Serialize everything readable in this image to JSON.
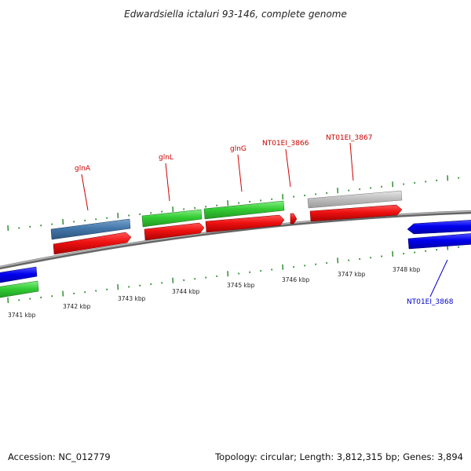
{
  "title": "Edwardsiella ictaluri 93-146, complete genome",
  "footer": {
    "accession": "Accession: NC_012779",
    "summary": "Topology: circular; Length: 3,812,315 bp; Genes: 3,894"
  },
  "ruler_labels": [
    "3741 kbp",
    "3742 kbp",
    "3743 kbp",
    "3744 kbp",
    "3745 kbp",
    "3746 kbp",
    "3747 kbp",
    "3748 kbp"
  ],
  "gene_labels": [
    {
      "text": "glnA",
      "color": "#cc0000"
    },
    {
      "text": "glnL",
      "color": "#cc0000"
    },
    {
      "text": "glnG",
      "color": "#cc0000"
    },
    {
      "text": "NT01EI_3866",
      "color": "#cc0000"
    },
    {
      "text": "NT01EI_3867",
      "color": "#cc0000"
    },
    {
      "text": "NT01EI_3868",
      "color": "#0000cc"
    }
  ],
  "colors": {
    "backbone": "#8c8c8c",
    "cds": "#ee1111",
    "gene_green": "#33cc33",
    "gene_steel": "#4477aa",
    "gene_grey": "#c0c0c0",
    "gene_blue": "#0000ee",
    "tick": "#228822"
  }
}
